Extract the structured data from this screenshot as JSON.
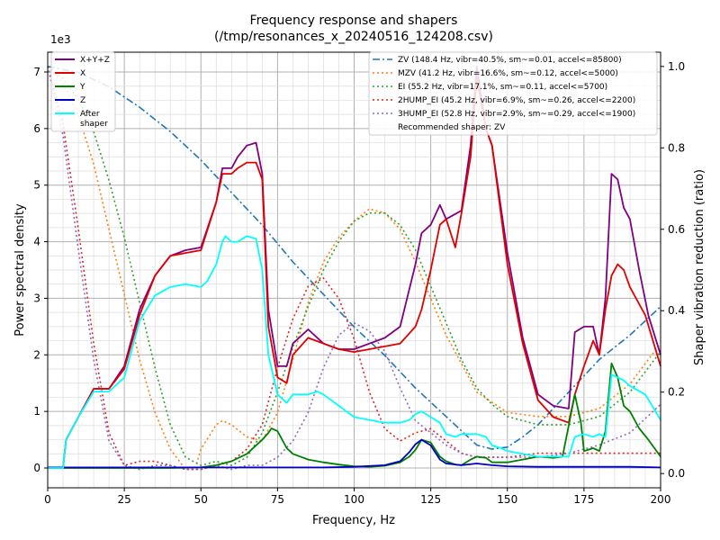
{
  "chart_data": {
    "type": "line",
    "title": "Frequency response and shapers",
    "subtitle": "(/tmp/resonances_x_20240516_124208.csv)",
    "xlabel": "Frequency, Hz",
    "ylabel": "Power spectral density",
    "y2label": "Shaper vibration reduction (ratio)",
    "y_offset_label": "1e3",
    "xlim": [
      0,
      200
    ],
    "ylim": [
      -0.35,
      7.35
    ],
    "y2lim": [
      -0.035,
      1.035
    ],
    "xticks": [
      0,
      25,
      50,
      75,
      100,
      125,
      150,
      175,
      200
    ],
    "yticks": [
      0,
      1,
      2,
      3,
      4,
      5,
      6,
      7
    ],
    "y2ticks": [
      0.0,
      0.2,
      0.4,
      0.6,
      0.8,
      1.0
    ],
    "y2tick_labels": [
      "0.0",
      "0.2",
      "0.4",
      "0.6",
      "0.8",
      "1.0"
    ],
    "grid": true,
    "legend_left_position": "top-left",
    "legend_right_position": "top-right",
    "psd_series": [
      {
        "name": "X+Y+Z",
        "color": "#800080",
        "x": [
          0,
          4,
          5,
          6,
          10,
          15,
          20,
          25,
          30,
          35,
          40,
          45,
          50,
          55,
          57,
          60,
          62,
          65,
          68,
          70,
          72,
          75,
          78,
          80,
          85,
          90,
          95,
          100,
          105,
          110,
          115,
          120,
          122,
          125,
          128,
          130,
          135,
          138,
          140,
          143,
          145,
          150,
          155,
          160,
          165,
          170,
          172,
          175,
          178,
          180,
          182,
          184,
          186,
          188,
          190,
          193,
          196,
          200
        ],
        "y": [
          0,
          0,
          0,
          0.5,
          0.9,
          1.4,
          1.4,
          1.8,
          2.8,
          3.4,
          3.75,
          3.85,
          3.9,
          4.7,
          5.3,
          5.3,
          5.5,
          5.7,
          5.75,
          5.2,
          2.8,
          1.8,
          1.8,
          2.2,
          2.45,
          2.2,
          2.1,
          2.1,
          2.2,
          2.3,
          2.5,
          3.6,
          4.15,
          4.3,
          4.65,
          4.4,
          4.55,
          5.7,
          7.1,
          6.0,
          5.7,
          3.8,
          2.3,
          1.3,
          1.1,
          1.05,
          2.4,
          2.5,
          2.5,
          2.0,
          3.0,
          5.2,
          5.1,
          4.6,
          4.4,
          3.5,
          2.7,
          2.0
        ]
      },
      {
        "name": "X",
        "color": "#e00000",
        "x": [
          0,
          4,
          5,
          6,
          10,
          15,
          20,
          25,
          30,
          35,
          40,
          45,
          50,
          55,
          57,
          60,
          62,
          65,
          68,
          70,
          72,
          75,
          78,
          80,
          85,
          90,
          95,
          100,
          105,
          110,
          115,
          120,
          122,
          125,
          128,
          130,
          133,
          135,
          138,
          140,
          143,
          145,
          150,
          155,
          160,
          165,
          170,
          172,
          175,
          178,
          180,
          182,
          184,
          186,
          188,
          190,
          195,
          200
        ],
        "y": [
          0,
          0,
          0,
          0.5,
          0.9,
          1.4,
          1.4,
          1.75,
          2.7,
          3.4,
          3.75,
          3.8,
          3.85,
          4.7,
          5.2,
          5.2,
          5.3,
          5.4,
          5.4,
          5.1,
          2.5,
          1.6,
          1.5,
          2.0,
          2.3,
          2.2,
          2.1,
          2.05,
          2.1,
          2.15,
          2.2,
          2.5,
          2.8,
          3.5,
          4.3,
          4.4,
          3.9,
          4.5,
          5.5,
          6.9,
          6.0,
          5.7,
          3.6,
          2.2,
          1.2,
          0.9,
          0.8,
          1.3,
          1.8,
          2.25,
          2.0,
          2.8,
          3.4,
          3.6,
          3.5,
          3.2,
          2.7,
          1.8
        ]
      },
      {
        "name": "Y",
        "color": "#008000",
        "x": [
          0,
          10,
          20,
          30,
          40,
          50,
          55,
          60,
          65,
          70,
          72,
          73,
          75,
          78,
          80,
          85,
          90,
          95,
          100,
          105,
          110,
          115,
          118,
          120,
          122,
          125,
          128,
          130,
          133,
          135,
          138,
          140,
          143,
          145,
          150,
          155,
          160,
          165,
          168,
          170,
          172,
          174,
          175,
          178,
          180,
          182,
          184,
          186,
          188,
          190,
          193,
          196,
          200
        ],
        "y": [
          0,
          0,
          0,
          0,
          0,
          0.01,
          0.05,
          0.12,
          0.25,
          0.5,
          0.62,
          0.7,
          0.65,
          0.35,
          0.25,
          0.15,
          0.1,
          0.06,
          0.03,
          0.02,
          0.04,
          0.1,
          0.2,
          0.32,
          0.5,
          0.45,
          0.2,
          0.12,
          0.06,
          0.05,
          0.15,
          0.2,
          0.18,
          0.1,
          0.1,
          0.15,
          0.2,
          0.18,
          0.2,
          0.75,
          1.3,
          0.8,
          0.3,
          0.35,
          0.3,
          0.65,
          1.85,
          1.6,
          1.1,
          1.0,
          0.7,
          0.5,
          0.2
        ]
      },
      {
        "name": "Z",
        "color": "#0000c0",
        "x": [
          0,
          10,
          20,
          30,
          40,
          50,
          60,
          70,
          80,
          90,
          100,
          110,
          115,
          118,
          120,
          122,
          125,
          128,
          130,
          135,
          140,
          145,
          150,
          160,
          170,
          180,
          190,
          200
        ],
        "y": [
          0.01,
          0.01,
          0.01,
          0.01,
          0.01,
          0.01,
          0.01,
          0.01,
          0.01,
          0.01,
          0.02,
          0.05,
          0.12,
          0.28,
          0.42,
          0.5,
          0.4,
          0.15,
          0.08,
          0.05,
          0.08,
          0.05,
          0.03,
          0.02,
          0.02,
          0.02,
          0.02,
          0.01
        ]
      },
      {
        "name": "After\nshaper",
        "color": "#00ffff",
        "x": [
          0,
          4,
          5,
          6,
          10,
          15,
          20,
          25,
          30,
          35,
          40,
          45,
          50,
          52,
          55,
          57,
          58,
          60,
          62,
          65,
          68,
          70,
          72,
          75,
          78,
          80,
          82,
          85,
          88,
          90,
          95,
          100,
          105,
          110,
          115,
          118,
          120,
          122,
          125,
          128,
          130,
          133,
          135,
          138,
          140,
          143,
          145,
          148,
          150,
          155,
          160,
          165,
          170,
          172,
          175,
          178,
          180,
          182,
          184,
          186,
          188,
          190,
          195,
          200
        ],
        "y": [
          0,
          0,
          0,
          0.5,
          0.9,
          1.35,
          1.35,
          1.6,
          2.6,
          3.05,
          3.2,
          3.25,
          3.2,
          3.3,
          3.6,
          4.0,
          4.1,
          4.0,
          4.0,
          4.1,
          4.05,
          3.5,
          2.0,
          1.3,
          1.15,
          1.3,
          1.3,
          1.3,
          1.35,
          1.3,
          1.1,
          0.9,
          0.85,
          0.8,
          0.8,
          0.85,
          0.95,
          1.0,
          0.9,
          0.8,
          0.6,
          0.55,
          0.6,
          0.6,
          0.6,
          0.55,
          0.4,
          0.35,
          0.3,
          0.25,
          0.2,
          0.2,
          0.2,
          0.55,
          0.6,
          0.55,
          0.6,
          0.55,
          1.65,
          1.6,
          1.55,
          1.45,
          1.3,
          0.85
        ]
      }
    ],
    "shaper_series": [
      {
        "name": "ZV (148.4 Hz, vibr=40.5%, sm~=0.01, accel<=85800)",
        "color": "#1f77b4",
        "dash": "dashdot",
        "x": [
          0,
          10,
          20,
          30,
          40,
          50,
          60,
          70,
          80,
          90,
          100,
          110,
          120,
          130,
          140,
          145,
          150,
          155,
          160,
          170,
          180,
          190,
          200
        ],
        "y": [
          1.0,
          0.985,
          0.95,
          0.9,
          0.84,
          0.77,
          0.69,
          0.61,
          0.52,
          0.44,
          0.36,
          0.29,
          0.21,
          0.14,
          0.07,
          0.06,
          0.065,
          0.09,
          0.12,
          0.2,
          0.28,
          0.34,
          0.41
        ]
      },
      {
        "name": "MZV (41.2 Hz, vibr=16.6%, sm~=0.12, accel<=5000)",
        "color": "#ff7f0e",
        "dash": "dotted",
        "x": [
          0,
          5,
          10,
          15,
          20,
          25,
          30,
          35,
          40,
          45,
          48,
          50,
          55,
          57,
          60,
          65,
          70,
          75,
          80,
          85,
          90,
          95,
          100,
          105,
          110,
          115,
          120,
          125,
          130,
          140,
          150,
          160,
          170,
          180,
          190,
          200
        ],
        "y": [
          1.0,
          0.96,
          0.88,
          0.76,
          0.6,
          0.44,
          0.28,
          0.15,
          0.06,
          0.01,
          0.01,
          0.06,
          0.12,
          0.13,
          0.12,
          0.09,
          0.08,
          0.15,
          0.28,
          0.42,
          0.52,
          0.58,
          0.62,
          0.65,
          0.64,
          0.6,
          0.52,
          0.43,
          0.34,
          0.2,
          0.15,
          0.14,
          0.14,
          0.16,
          0.22,
          0.32
        ]
      },
      {
        "name": "EI (55.2 Hz, vibr=17.1%, sm~=0.11, accel<=5700)",
        "color": "#2ca02c",
        "dash": "dotted",
        "x": [
          0,
          5,
          10,
          15,
          20,
          25,
          30,
          35,
          40,
          45,
          50,
          55,
          60,
          65,
          70,
          75,
          80,
          85,
          90,
          95,
          100,
          105,
          110,
          115,
          120,
          125,
          130,
          135,
          140,
          145,
          150,
          160,
          170,
          180,
          190,
          200
        ],
        "y": [
          1.0,
          0.97,
          0.92,
          0.84,
          0.72,
          0.58,
          0.42,
          0.26,
          0.12,
          0.04,
          0.02,
          0.03,
          0.02,
          0.04,
          0.1,
          0.2,
          0.31,
          0.41,
          0.5,
          0.57,
          0.62,
          0.64,
          0.64,
          0.61,
          0.55,
          0.46,
          0.37,
          0.28,
          0.21,
          0.17,
          0.14,
          0.12,
          0.12,
          0.14,
          0.2,
          0.3
        ]
      },
      {
        "name": "2HUMP_EI (45.2 Hz, vibr=6.9%, sm~=0.26, accel<=2200)",
        "color": "#d62728",
        "dash": "dotted",
        "x": [
          0,
          5,
          10,
          15,
          20,
          25,
          30,
          35,
          40,
          45,
          50,
          55,
          60,
          65,
          70,
          75,
          80,
          85,
          90,
          95,
          100,
          105,
          110,
          115,
          120,
          125,
          130,
          135,
          140,
          150,
          160,
          170,
          180,
          190,
          200
        ],
        "y": [
          1.0,
          0.86,
          0.6,
          0.32,
          0.1,
          0.02,
          0.03,
          0.03,
          0.02,
          0.01,
          0.01,
          0.02,
          0.03,
          0.06,
          0.12,
          0.26,
          0.38,
          0.46,
          0.48,
          0.43,
          0.33,
          0.2,
          0.11,
          0.08,
          0.1,
          0.11,
          0.08,
          0.05,
          0.04,
          0.04,
          0.05,
          0.05,
          0.05,
          0.05,
          0.05
        ]
      },
      {
        "name": "3HUMP_EI (52.8 Hz, vibr=2.9%, sm~=0.29, accel<=1900)",
        "color": "#9467bd",
        "dash": "dotted",
        "x": [
          0,
          5,
          10,
          15,
          20,
          25,
          30,
          35,
          40,
          45,
          50,
          55,
          60,
          65,
          70,
          75,
          80,
          85,
          90,
          95,
          100,
          105,
          110,
          115,
          120,
          125,
          130,
          135,
          140,
          150,
          160,
          170,
          180,
          190,
          200
        ],
        "y": [
          1.0,
          0.83,
          0.55,
          0.28,
          0.08,
          0.02,
          0.01,
          0.02,
          0.02,
          0.01,
          0.01,
          0.02,
          0.01,
          0.02,
          0.02,
          0.04,
          0.08,
          0.15,
          0.26,
          0.34,
          0.37,
          0.35,
          0.3,
          0.21,
          0.13,
          0.1,
          0.07,
          0.05,
          0.04,
          0.04,
          0.04,
          0.05,
          0.07,
          0.1,
          0.17
        ]
      }
    ],
    "recommendation": "Recommended shaper: ZV"
  }
}
